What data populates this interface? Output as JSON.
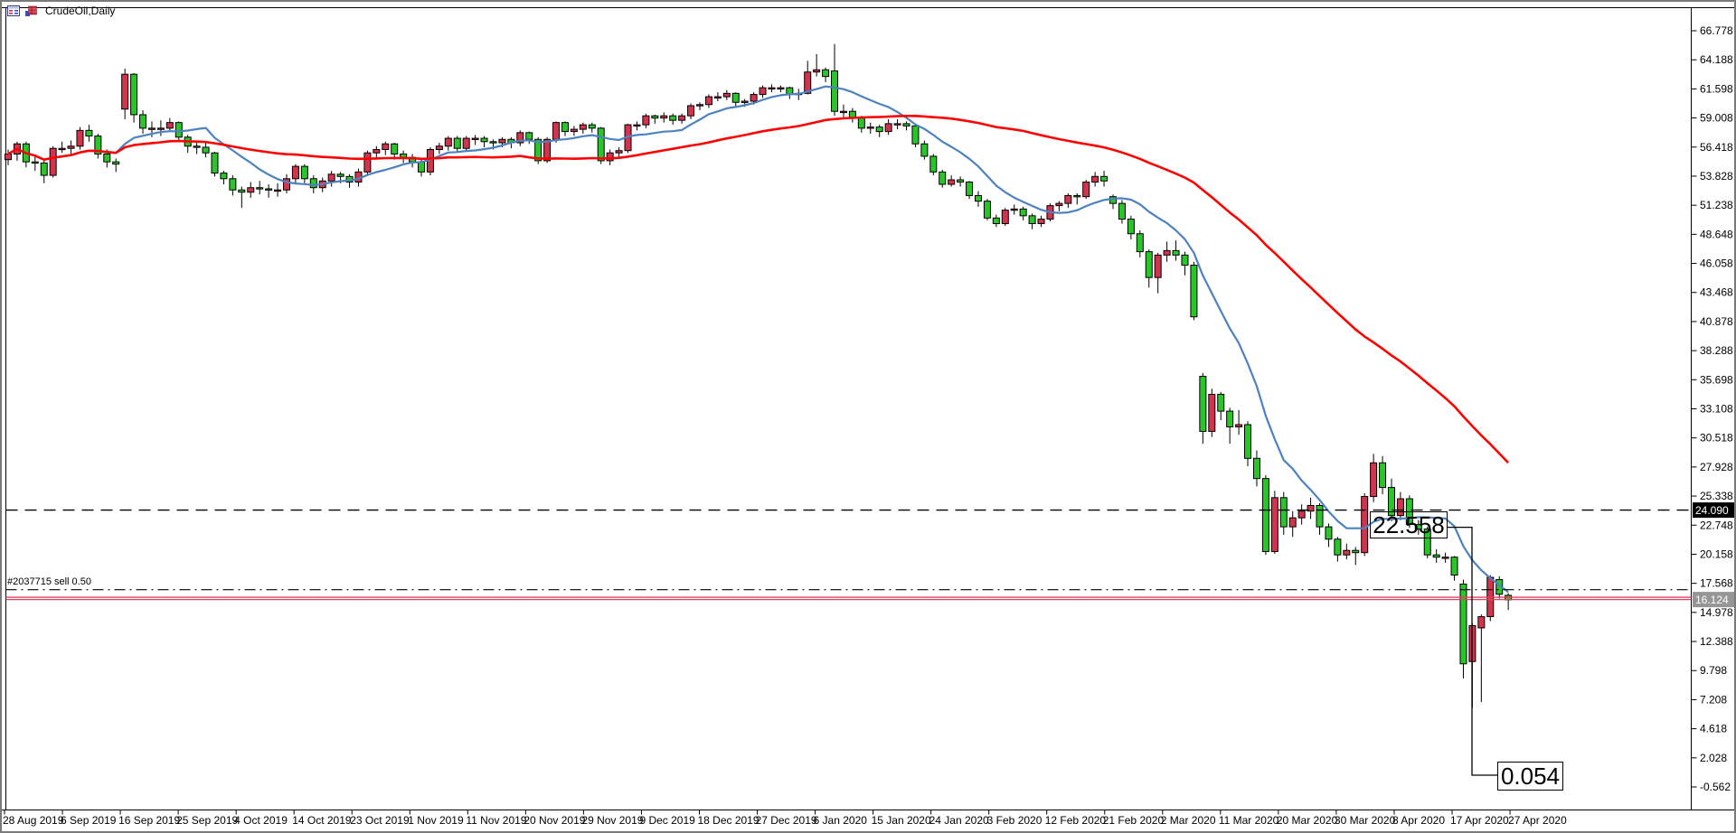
{
  "titlebar": {
    "symbol_label": "CrudeOil,Daily",
    "icons": [
      "quotes-grid-icon",
      "bar-chart-icon"
    ]
  },
  "chart_data": {
    "type": "candlestick",
    "title": "CrudeOil,Daily",
    "symbol": "CrudeOil",
    "timeframe": "Daily",
    "grid": "off",
    "legend": "none",
    "ylim": [
      -0.562,
      66.778
    ],
    "y_axis_ticks": [
      "66.778",
      "64.188",
      "61.598",
      "59.008",
      "56.418",
      "53.828",
      "51.238",
      "48.648",
      "46.058",
      "43.468",
      "40.878",
      "38.288",
      "35.698",
      "33.108",
      "30.518",
      "27.928",
      "25.338",
      "22.748",
      "20.158",
      "17.568",
      "14.978",
      "12.388",
      "9.798",
      "7.208",
      "4.618",
      "2.028",
      "-0.562"
    ],
    "x_axis_labels": [
      "28 Aug 2019",
      "6 Sep 2019",
      "16 Sep 2019",
      "25 Sep 2019",
      "4 Oct 2019",
      "14 Oct 2019",
      "23 Oct 2019",
      "1 Nov 2019",
      "11 Nov 2019",
      "20 Nov 2019",
      "29 Nov 2019",
      "9 Dec 2019",
      "18 Dec 2019",
      "27 Dec 2019",
      "6 Jan 2020",
      "15 Jan 2020",
      "24 Jan 2020",
      "3 Feb 2020",
      "12 Feb 2020",
      "21 Feb 2020",
      "2 Mar 2020",
      "11 Mar 2020",
      "20 Mar 2020",
      "30 Mar 2020",
      "8 Apr 2020",
      "17 Apr 2020",
      "27 Apr 2020"
    ],
    "candles_format": "[open, high, low, close] — bullish candles render red, bearish render green on this platform theme",
    "candles": [
      [
        55.3,
        56.2,
        54.8,
        55.8
      ],
      [
        55.8,
        56.9,
        55.2,
        56.7
      ],
      [
        56.7,
        56.9,
        54.6,
        55.1
      ],
      [
        55.1,
        55.6,
        54.3,
        55.0
      ],
      [
        55.0,
        55.3,
        53.2,
        53.9
      ],
      [
        53.9,
        56.5,
        53.7,
        56.3
      ],
      [
        56.3,
        56.9,
        55.9,
        56.3
      ],
      [
        56.3,
        57.0,
        55.8,
        56.5
      ],
      [
        56.5,
        58.2,
        56.2,
        57.9
      ],
      [
        57.9,
        58.4,
        56.9,
        57.4
      ],
      [
        57.4,
        57.6,
        55.4,
        55.8
      ],
      [
        55.8,
        56.2,
        54.6,
        55.1
      ],
      [
        55.1,
        55.4,
        54.2,
        54.9
      ],
      [
        59.8,
        63.4,
        58.9,
        62.9
      ],
      [
        62.9,
        63.0,
        58.6,
        59.3
      ],
      [
        59.3,
        59.7,
        57.6,
        58.1
      ],
      [
        58.1,
        58.7,
        57.3,
        58.1
      ],
      [
        58.1,
        58.8,
        57.4,
        58.1
      ],
      [
        58.1,
        59.0,
        57.8,
        58.6
      ],
      [
        58.6,
        58.7,
        56.9,
        57.3
      ],
      [
        57.3,
        57.5,
        55.9,
        56.5
      ],
      [
        56.5,
        57.0,
        55.8,
        56.4
      ],
      [
        56.4,
        56.8,
        55.5,
        55.9
      ],
      [
        55.9,
        56.0,
        53.8,
        54.1
      ],
      [
        54.1,
        54.3,
        53.1,
        53.6
      ],
      [
        53.6,
        53.9,
        52.1,
        52.6
      ],
      [
        52.6,
        52.9,
        51.0,
        52.4
      ],
      [
        52.4,
        53.3,
        51.9,
        52.8
      ],
      [
        52.8,
        53.4,
        52.2,
        52.7
      ],
      [
        52.7,
        53.1,
        51.9,
        52.6
      ],
      [
        52.6,
        53.2,
        52.0,
        52.6
      ],
      [
        52.6,
        54.0,
        52.3,
        53.6
      ],
      [
        53.6,
        54.9,
        53.1,
        54.7
      ],
      [
        54.7,
        54.9,
        53.2,
        53.6
      ],
      [
        53.6,
        53.9,
        52.3,
        52.8
      ],
      [
        52.8,
        53.7,
        52.4,
        53.4
      ],
      [
        53.4,
        54.3,
        52.9,
        54.0
      ],
      [
        54.0,
        54.2,
        53.2,
        53.8
      ],
      [
        53.8,
        54.0,
        52.8,
        53.3
      ],
      [
        53.3,
        54.5,
        52.9,
        54.2
      ],
      [
        54.2,
        56.1,
        53.9,
        55.9
      ],
      [
        55.9,
        56.5,
        55.4,
        56.2
      ],
      [
        56.2,
        56.9,
        55.7,
        56.7
      ],
      [
        56.7,
        56.8,
        55.3,
        55.8
      ],
      [
        55.8,
        56.1,
        55.0,
        55.5
      ],
      [
        55.5,
        55.8,
        54.6,
        55.1
      ],
      [
        55.1,
        55.3,
        53.8,
        54.2
      ],
      [
        54.2,
        56.4,
        53.9,
        56.2
      ],
      [
        56.2,
        56.8,
        55.8,
        56.5
      ],
      [
        56.5,
        57.4,
        56.1,
        57.2
      ],
      [
        57.2,
        57.4,
        56.0,
        56.3
      ],
      [
        56.3,
        57.4,
        56.0,
        57.2
      ],
      [
        57.2,
        57.5,
        56.6,
        57.2
      ],
      [
        57.2,
        57.4,
        56.4,
        56.9
      ],
      [
        56.9,
        57.1,
        56.2,
        56.8
      ],
      [
        56.8,
        57.3,
        56.4,
        57.1
      ],
      [
        57.1,
        57.3,
        56.3,
        56.8
      ],
      [
        56.8,
        57.9,
        56.5,
        57.7
      ],
      [
        57.7,
        57.8,
        56.7,
        57.1
      ],
      [
        57.1,
        57.3,
        54.9,
        55.2
      ],
      [
        55.2,
        57.3,
        55.0,
        57.1
      ],
      [
        57.1,
        58.7,
        56.8,
        58.6
      ],
      [
        58.6,
        58.7,
        57.4,
        57.8
      ],
      [
        57.8,
        58.3,
        57.4,
        58.0
      ],
      [
        58.0,
        58.6,
        57.6,
        58.4
      ],
      [
        58.4,
        58.6,
        57.7,
        58.1
      ],
      [
        58.1,
        58.2,
        54.9,
        55.2
      ],
      [
        55.2,
        56.2,
        54.8,
        55.9
      ],
      [
        55.9,
        56.4,
        55.4,
        56.1
      ],
      [
        56.1,
        58.5,
        55.9,
        58.4
      ],
      [
        58.4,
        58.7,
        57.9,
        58.4
      ],
      [
        58.4,
        59.4,
        58.1,
        59.2
      ],
      [
        59.2,
        59.3,
        58.5,
        59.0
      ],
      [
        59.0,
        59.5,
        58.6,
        59.2
      ],
      [
        59.2,
        59.4,
        58.4,
        58.8
      ],
      [
        58.8,
        59.4,
        58.5,
        59.2
      ],
      [
        59.2,
        60.3,
        58.9,
        60.1
      ],
      [
        60.1,
        60.4,
        59.7,
        60.2
      ],
      [
        60.2,
        61.1,
        59.9,
        60.9
      ],
      [
        60.9,
        61.3,
        60.5,
        60.9
      ],
      [
        60.9,
        61.5,
        60.6,
        61.2
      ],
      [
        61.2,
        61.3,
        60.0,
        60.4
      ],
      [
        60.4,
        60.7,
        60.0,
        60.5
      ],
      [
        60.5,
        61.3,
        60.2,
        61.1
      ],
      [
        61.1,
        61.9,
        60.8,
        61.7
      ],
      [
        61.7,
        62.0,
        61.3,
        61.7
      ],
      [
        61.7,
        61.9,
        61.3,
        61.7
      ],
      [
        61.7,
        61.8,
        60.7,
        61.1
      ],
      [
        61.1,
        61.6,
        60.6,
        61.2
      ],
      [
        61.2,
        64.1,
        61.1,
        63.1
      ],
      [
        63.1,
        64.7,
        62.7,
        63.3
      ],
      [
        63.3,
        63.5,
        62.2,
        62.7
      ],
      [
        63.2,
        65.6,
        59.2,
        59.6
      ],
      [
        59.6,
        60.2,
        58.9,
        59.6
      ],
      [
        59.6,
        59.9,
        58.6,
        59.0
      ],
      [
        59.0,
        59.2,
        57.7,
        58.1
      ],
      [
        58.1,
        58.6,
        57.6,
        58.2
      ],
      [
        58.2,
        58.4,
        57.3,
        57.8
      ],
      [
        57.8,
        58.9,
        57.5,
        58.5
      ],
      [
        58.5,
        58.9,
        58.0,
        58.5
      ],
      [
        58.5,
        58.7,
        57.9,
        58.3
      ],
      [
        58.3,
        58.4,
        56.4,
        56.7
      ],
      [
        56.7,
        57.0,
        55.3,
        55.6
      ],
      [
        55.6,
        55.8,
        53.9,
        54.2
      ],
      [
        54.2,
        54.4,
        52.8,
        53.1
      ],
      [
        53.1,
        53.9,
        52.9,
        53.5
      ],
      [
        53.5,
        53.8,
        52.9,
        53.3
      ],
      [
        53.3,
        53.4,
        51.8,
        52.1
      ],
      [
        52.1,
        52.5,
        51.1,
        51.6
      ],
      [
        51.6,
        51.8,
        49.9,
        50.1
      ],
      [
        50.1,
        50.4,
        49.3,
        49.6
      ],
      [
        49.6,
        51.0,
        49.4,
        50.8
      ],
      [
        50.8,
        51.3,
        50.4,
        50.9
      ],
      [
        50.9,
        51.1,
        49.9,
        50.3
      ],
      [
        50.3,
        50.5,
        49.1,
        49.6
      ],
      [
        49.6,
        50.3,
        49.3,
        50.0
      ],
      [
        50.0,
        51.4,
        49.8,
        51.2
      ],
      [
        51.2,
        51.6,
        50.7,
        51.4
      ],
      [
        51.4,
        52.3,
        51.0,
        52.1
      ],
      [
        52.1,
        52.3,
        51.3,
        52.0
      ],
      [
        52.0,
        53.5,
        51.8,
        53.3
      ],
      [
        53.3,
        54.2,
        52.9,
        53.8
      ],
      [
        53.8,
        54.3,
        52.9,
        53.4
      ],
      [
        52.0,
        52.2,
        50.9,
        51.4
      ],
      [
        51.4,
        51.7,
        49.6,
        50.0
      ],
      [
        50.0,
        50.3,
        48.2,
        48.7
      ],
      [
        48.7,
        49.0,
        46.6,
        47.1
      ],
      [
        47.1,
        47.3,
        43.9,
        44.8
      ],
      [
        44.8,
        47.0,
        43.4,
        46.8
      ],
      [
        46.8,
        48.0,
        46.2,
        47.2
      ],
      [
        47.2,
        48.1,
        46.3,
        46.8
      ],
      [
        46.8,
        47.1,
        45.0,
        45.9
      ],
      [
        45.9,
        46.2,
        41.0,
        41.3
      ],
      [
        36.0,
        36.3,
        30.0,
        31.1
      ],
      [
        31.1,
        34.9,
        30.6,
        34.4
      ],
      [
        34.4,
        34.6,
        32.1,
        32.9
      ],
      [
        32.9,
        33.2,
        30.0,
        31.5
      ],
      [
        31.5,
        33.0,
        30.8,
        31.7
      ],
      [
        31.7,
        32.0,
        28.0,
        28.7
      ],
      [
        28.7,
        29.4,
        26.2,
        26.9
      ],
      [
        26.9,
        27.2,
        20.1,
        20.4
      ],
      [
        20.4,
        25.8,
        20.2,
        25.2
      ],
      [
        25.2,
        25.7,
        21.9,
        22.6
      ],
      [
        22.6,
        24.0,
        21.7,
        23.4
      ],
      [
        23.4,
        24.6,
        22.8,
        24.0
      ],
      [
        24.0,
        25.2,
        23.3,
        24.5
      ],
      [
        24.5,
        24.7,
        21.9,
        22.6
      ],
      [
        22.6,
        22.9,
        20.8,
        21.5
      ],
      [
        21.5,
        21.7,
        19.5,
        20.1
      ],
      [
        20.1,
        21.1,
        19.7,
        20.5
      ],
      [
        20.5,
        20.8,
        19.2,
        20.3
      ],
      [
        20.3,
        25.6,
        20.0,
        25.3
      ],
      [
        25.3,
        29.1,
        24.8,
        28.3
      ],
      [
        28.3,
        28.9,
        25.5,
        26.1
      ],
      [
        26.1,
        26.9,
        23.1,
        23.6
      ],
      [
        23.6,
        25.7,
        23.2,
        25.1
      ],
      [
        25.1,
        25.4,
        22.5,
        22.8
      ],
      [
        22.8,
        23.2,
        21.9,
        22.4
      ],
      [
        22.4,
        22.6,
        19.8,
        20.1
      ],
      [
        20.1,
        20.6,
        19.4,
        19.9
      ],
      [
        19.9,
        20.3,
        19.4,
        19.9
      ],
      [
        19.9,
        20.0,
        17.8,
        18.3
      ],
      [
        17.5,
        17.9,
        9.1,
        10.4
      ],
      [
        10.6,
        14.0,
        6.5,
        13.8
      ],
      [
        13.6,
        14.8,
        7.0,
        14.6
      ],
      [
        14.6,
        18.3,
        14.2,
        18.1
      ],
      [
        17.9,
        18.2,
        16.2,
        16.6
      ],
      [
        16.5,
        16.7,
        15.2,
        16.1
      ]
    ],
    "moving_averages": [
      {
        "name": "fast-ma",
        "period": 10,
        "color": "#4d82c0"
      },
      {
        "name": "slow-ma",
        "period": 45,
        "color": "#fe0000"
      }
    ],
    "lines": {
      "dashed_level": {
        "price": 24.09,
        "axis_label": "24.090",
        "style": "dashed",
        "color": "#000000"
      },
      "order": {
        "label": "#2037715 sell 0.50",
        "price": 17.0,
        "style": "dash-dot",
        "color": "#000000"
      },
      "ask": {
        "price": 16.33,
        "color": "#e0435f"
      },
      "bid": {
        "price": 16.124,
        "axis_label": "16.124",
        "color": "#e0435f"
      }
    },
    "price_labels": [
      {
        "text": "22.558",
        "price": 22.558
      },
      {
        "text": "0.054",
        "price": 0.054
      }
    ],
    "colors": {
      "bull_candle": "#d2344e",
      "bear_candle": "#2bc42b",
      "candle_outline": "#000000",
      "bid_axis_label_bg": "#969696",
      "level_axis_label_bg": "#000000",
      "frame": "#000000",
      "background": "#ffffff"
    }
  }
}
